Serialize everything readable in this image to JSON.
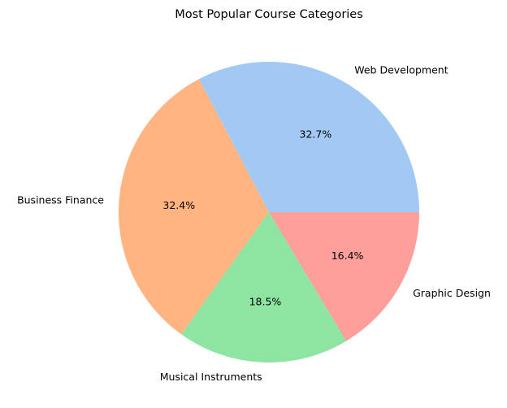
{
  "chart_data": {
    "type": "pie",
    "title": "Most Popular Course Categories",
    "categories": [
      "Web Development",
      "Business Finance",
      "Musical Instruments",
      "Graphic Design"
    ],
    "values": [
      32.7,
      32.4,
      18.5,
      16.4
    ],
    "percent_labels": [
      "32.7%",
      "32.4%",
      "18.5%",
      "16.4%"
    ],
    "colors": [
      "#a1c9f4",
      "#ffb482",
      "#8de5a1",
      "#ff9f9b"
    ],
    "start_angle_deg": 0,
    "direction": "counterclockwise",
    "legend": "none"
  }
}
